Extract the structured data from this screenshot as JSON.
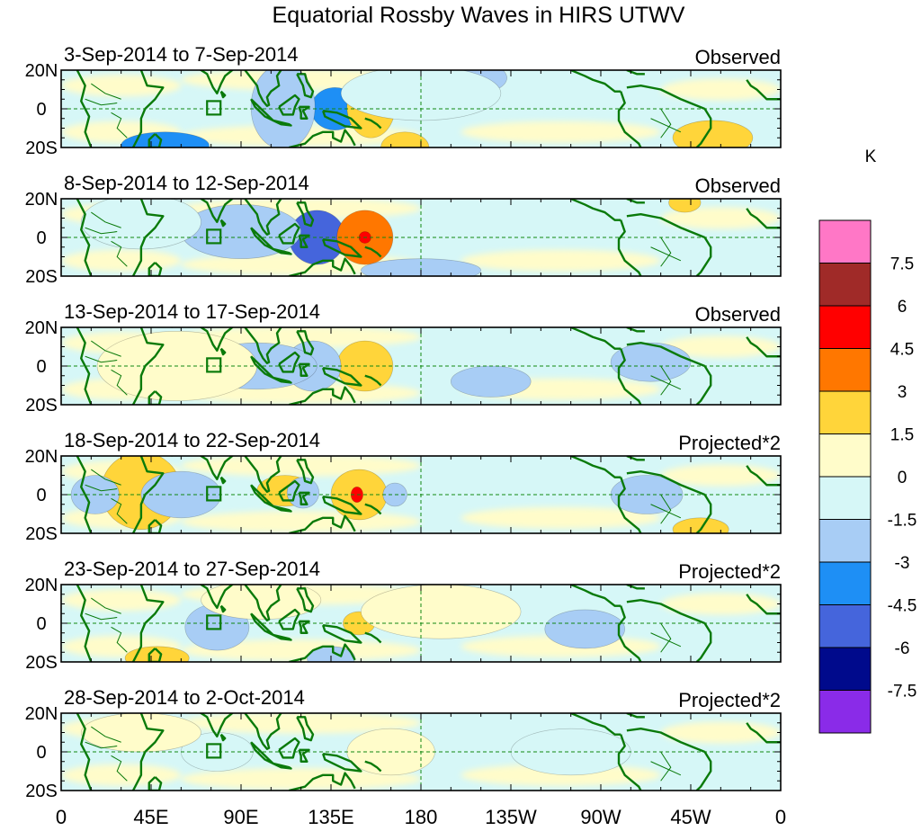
{
  "figure": {
    "title": "Equatorial Rossby Waves in HIRS UTWV",
    "units": "K",
    "colors": {
      "land": "#0a7a0a",
      "equator_line": "#118811",
      "frame": "#000000"
    }
  },
  "lat_labels": [
    "20N",
    "0",
    "20S"
  ],
  "lon_labels": [
    "0",
    "45E",
    "90E",
    "135E",
    "180",
    "135W",
    "90W",
    "45W",
    "0"
  ],
  "colorbar": {
    "labels": [
      "7.5",
      "6",
      "4.5",
      "3",
      "1.5",
      "0",
      "-1.5",
      "-3",
      "-4.5",
      "-6",
      "-7.5"
    ],
    "bins": [
      {
        "color": "#ff77c6",
        "range": "> 7.5"
      },
      {
        "color": "#a02a28",
        "range": "6 to 7.5"
      },
      {
        "color": "#ff0000",
        "range": "4.5 to 6"
      },
      {
        "color": "#ff7700",
        "range": "3 to 4.5"
      },
      {
        "color": "#ffd53a",
        "range": "1.5 to 3"
      },
      {
        "color": "#fffcca",
        "range": "0 to 1.5"
      },
      {
        "color": "#d6f7f7",
        "range": "-1.5 to 0"
      },
      {
        "color": "#a8cdf5",
        "range": "-3 to -1.5"
      },
      {
        "color": "#1e8ff5",
        "range": "-4.5 to -3"
      },
      {
        "color": "#4565dc",
        "range": "-6 to -4.5"
      },
      {
        "color": "#000a8c",
        "range": "-7.5 to -6"
      },
      {
        "color": "#8a2be8",
        "range": "< -7.5"
      }
    ]
  },
  "panels": [
    {
      "period": "3-Sep-2014 to 7-Sep-2014",
      "status": "Observed",
      "anomalies": [
        {
          "lon": 137,
          "lat": 0,
          "value": -4.2,
          "w": 12,
          "h": 11
        },
        {
          "lon": 111,
          "lat": 1,
          "value": -2.1,
          "w": 16,
          "h": 22
        },
        {
          "lon": 172,
          "lat": -20,
          "value": 2.2,
          "w": 12,
          "h": 8
        },
        {
          "lon": 155,
          "lat": 1,
          "value": 2.5,
          "w": 12,
          "h": 16
        },
        {
          "lon": 52,
          "lat": -19,
          "value": -4.0,
          "w": 22,
          "h": 7
        },
        {
          "lon": 203,
          "lat": 16,
          "value": -1.8,
          "w": 20,
          "h": 9
        },
        {
          "lon": 326,
          "lat": -15,
          "value": 1.8,
          "w": 20,
          "h": 9
        },
        {
          "lon": 180,
          "lat": 8,
          "value": -0.8,
          "w": 40,
          "h": 14
        }
      ]
    },
    {
      "period": "8-Sep-2014 to 12-Sep-2014",
      "status": "Observed",
      "anomalies": [
        {
          "lon": 128,
          "lat": 0,
          "value": -4.6,
          "w": 14,
          "h": 14
        },
        {
          "lon": 152,
          "lat": 0,
          "value": 3.4,
          "w": 14,
          "h": 14
        },
        {
          "lon": 152,
          "lat": 0,
          "value": 5.1,
          "w": 3,
          "h": 3
        },
        {
          "lon": 90,
          "lat": 3,
          "value": -1.8,
          "w": 30,
          "h": 14
        },
        {
          "lon": 312,
          "lat": 18,
          "value": 1.8,
          "w": 8,
          "h": 5
        },
        {
          "lon": 180,
          "lat": -17,
          "value": -1.8,
          "w": 30,
          "h": 6
        },
        {
          "lon": 40,
          "lat": 8,
          "value": -1.2,
          "w": 30,
          "h": 14
        }
      ]
    },
    {
      "period": "13-Sep-2014 to 17-Sep-2014",
      "status": "Observed",
      "anomalies": [
        {
          "lon": 152,
          "lat": 0,
          "value": 2.3,
          "w": 14,
          "h": 13
        },
        {
          "lon": 126,
          "lat": 0,
          "value": -1.9,
          "w": 14,
          "h": 13
        },
        {
          "lon": 98,
          "lat": 0,
          "value": -1.7,
          "w": 30,
          "h": 12
        },
        {
          "lon": 58,
          "lat": 0,
          "value": 0.9,
          "w": 40,
          "h": 18
        },
        {
          "lon": 215,
          "lat": -8,
          "value": -1.7,
          "w": 20,
          "h": 8
        },
        {
          "lon": 295,
          "lat": 2,
          "value": -1.6,
          "w": 20,
          "h": 10
        }
      ]
    },
    {
      "period": "18-Sep-2014 to 22-Sep-2014",
      "status": "Projected*2",
      "anomalies": [
        {
          "lon": 149,
          "lat": 0,
          "value": 3.0,
          "w": 14,
          "h": 13
        },
        {
          "lon": 148,
          "lat": 0,
          "value": 4.6,
          "w": 3,
          "h": 4
        },
        {
          "lon": 40,
          "lat": 2,
          "value": 2.2,
          "w": 20,
          "h": 20
        },
        {
          "lon": 17,
          "lat": 0,
          "value": -1.7,
          "w": 12,
          "h": 10
        },
        {
          "lon": 60,
          "lat": 0,
          "value": -1.7,
          "w": 20,
          "h": 12
        },
        {
          "lon": 112,
          "lat": 2,
          "value": 1.8,
          "w": 14,
          "h": 8
        },
        {
          "lon": 121,
          "lat": 1,
          "value": -1.9,
          "w": 8,
          "h": 8
        },
        {
          "lon": 167,
          "lat": 0,
          "value": -1.6,
          "w": 6,
          "h": 6
        },
        {
          "lon": 293,
          "lat": 0,
          "value": -1.6,
          "w": 18,
          "h": 10
        },
        {
          "lon": 320,
          "lat": -18,
          "value": 1.8,
          "w": 14,
          "h": 6
        }
      ]
    },
    {
      "period": "23-Sep-2014 to 27-Sep-2014",
      "status": "Projected*2",
      "anomalies": [
        {
          "lon": 149,
          "lat": 0,
          "value": 2.0,
          "w": 8,
          "h": 6
        },
        {
          "lon": 78,
          "lat": -2,
          "value": -2.2,
          "w": 16,
          "h": 12
        },
        {
          "lon": 48,
          "lat": -18,
          "value": 2.0,
          "w": 16,
          "h": 6
        },
        {
          "lon": 100,
          "lat": 12,
          "value": 1.2,
          "w": 30,
          "h": 10
        },
        {
          "lon": 135,
          "lat": -18,
          "value": -1.7,
          "w": 12,
          "h": 6
        },
        {
          "lon": 262,
          "lat": -3,
          "value": -1.6,
          "w": 20,
          "h": 10
        },
        {
          "lon": 190,
          "lat": 6,
          "value": 0.8,
          "w": 40,
          "h": 14
        }
      ]
    },
    {
      "period": "28-Sep-2014 to 2-Oct-2014",
      "status": "Projected*2",
      "anomalies": [
        {
          "lon": 78,
          "lat": 0,
          "value": -0.9,
          "w": 18,
          "h": 10
        },
        {
          "lon": 165,
          "lat": 0,
          "value": 0.8,
          "w": 22,
          "h": 12
        },
        {
          "lon": 255,
          "lat": 0,
          "value": -0.8,
          "w": 30,
          "h": 12
        },
        {
          "lon": 40,
          "lat": 10,
          "value": 0.7,
          "w": 30,
          "h": 10
        }
      ]
    }
  ]
}
